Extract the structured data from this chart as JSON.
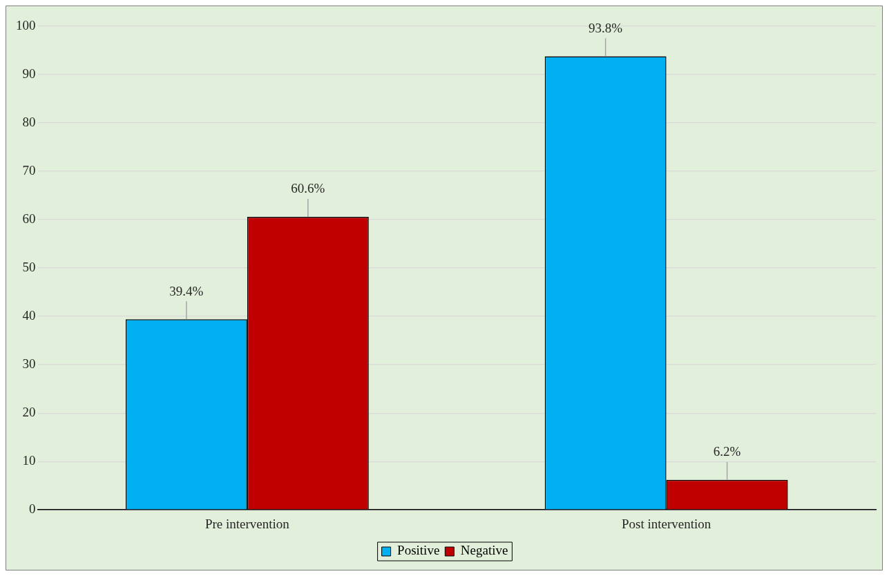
{
  "chart_data": {
    "type": "bar",
    "categories": [
      "Pre intervention",
      "Post intervention"
    ],
    "series": [
      {
        "name": "Positive",
        "color": "#00b0f0",
        "values": [
          39.4,
          93.8
        ],
        "value_labels": [
          "39.4%",
          "93.8%"
        ]
      },
      {
        "name": "Negative",
        "color": "#c00000",
        "values": [
          60.6,
          6.2
        ],
        "value_labels": [
          "60.6%",
          "6.2%"
        ]
      }
    ],
    "ylim": [
      0,
      100
    ],
    "yticks": [
      0,
      10,
      20,
      30,
      40,
      50,
      60,
      70,
      80,
      90,
      100
    ],
    "grid": "y",
    "legend": "bottom"
  }
}
